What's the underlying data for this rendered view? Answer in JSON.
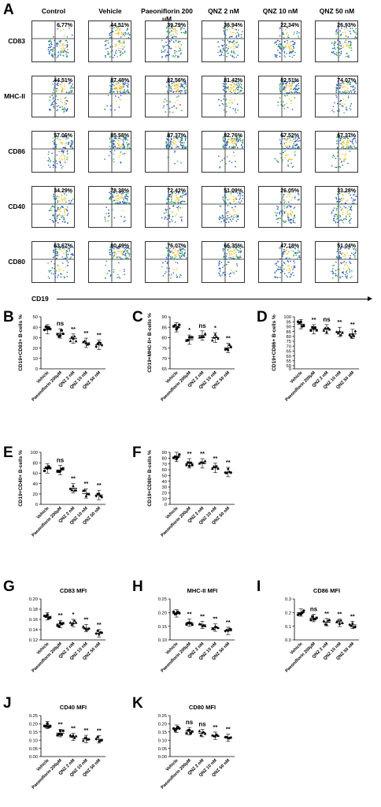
{
  "panel_labels": [
    "A",
    "B",
    "C",
    "D",
    "E",
    "F",
    "G",
    "H",
    "I",
    "J",
    "K"
  ],
  "panel_a": {
    "columns": [
      "Control",
      "Vehicle",
      "Paeoniflorin 200 μM",
      "QNZ 2 nM",
      "QNZ 10 nM",
      "QNZ 50 nM"
    ],
    "rows": [
      {
        "marker": "CD83",
        "values": [
          "6.77%",
          "44.51%",
          "39.79%",
          "36.94%",
          "22.34%",
          "26.93%"
        ]
      },
      {
        "marker": "MHC-II",
        "values": [
          "44.51%",
          "87.48%",
          "82.56%",
          "81.42%",
          "82.51%",
          "74.07%"
        ]
      },
      {
        "marker": "CD86",
        "values": [
          "57.06%",
          "85.58%",
          "87.37%",
          "82.76%",
          "67.52%",
          "67.37%"
        ]
      },
      {
        "marker": "CD40",
        "values": [
          "34.29%",
          "78.38%",
          "72.42%",
          "51.09%",
          "26.05%",
          "33.28%"
        ]
      },
      {
        "marker": "CD80",
        "values": [
          "63.67%",
          "80.49%",
          "76.07%",
          "66.35%",
          "47.18%",
          "51.04%"
        ]
      }
    ],
    "x_axis_label": "CD19"
  },
  "chart_data": [
    {
      "panel": "B",
      "type": "scatter",
      "ylabel": "CD19+CD83+ B-cells %",
      "ylim": [
        0,
        50
      ],
      "yticks": [
        "0",
        "10",
        "20",
        "30",
        "40",
        "50"
      ],
      "categories": [
        "Vehicle",
        "Paeoniflorin 200μM",
        "QNZ 2 nM",
        "QNZ 10 nM",
        "QNZ 50 nM"
      ],
      "means": [
        38,
        34,
        29,
        25,
        23
      ],
      "sig": [
        "",
        "ns",
        "**",
        "**",
        "**"
      ]
    },
    {
      "panel": "C",
      "type": "scatter",
      "ylabel": "CD19+MHC-II+ B-cells %",
      "ylim": [
        65,
        90
      ],
      "yticks": [
        "65",
        "70",
        "75",
        "80",
        "85",
        "90"
      ],
      "categories": [
        "Vehicle",
        "Paeoniflorin 200μM",
        "QNZ 2 nM",
        "QNZ 10 nM",
        "QNZ 50 nM"
      ],
      "means": [
        85,
        79,
        81,
        80,
        75
      ],
      "sig": [
        "",
        "*",
        "ns",
        "*",
        "**"
      ]
    },
    {
      "panel": "D",
      "type": "scatter",
      "ylabel": "CD19+CD86+ B-cells %",
      "ylim": [
        0,
        100
      ],
      "yticks": [
        "0",
        "50",
        "55",
        "60",
        "65",
        "70",
        "75",
        "80",
        "85",
        "90",
        "95",
        "100"
      ],
      "categories": [
        "Vehicle",
        "Paeoniflorin 200μM",
        "QNZ 2 nM",
        "QNZ 10 nM",
        "QNZ 50 nM"
      ],
      "means": [
        86,
        76,
        76,
        71,
        67
      ],
      "sig": [
        "",
        "**",
        "ns",
        "**",
        "**"
      ]
    },
    {
      "panel": "E",
      "type": "scatter",
      "ylabel": "CD19+CD40+ B-cells %",
      "ylim": [
        0,
        100
      ],
      "yticks": [
        "0",
        "20",
        "40",
        "60",
        "80",
        "100"
      ],
      "categories": [
        "Vehicle",
        "Paeoniflorin 200μM",
        "QNZ 2 nM",
        "QNZ 10 nM",
        "QNZ 50 nM"
      ],
      "means": [
        69,
        66,
        31,
        21,
        18
      ],
      "sig": [
        "",
        "ns",
        "**",
        "**",
        "**"
      ]
    },
    {
      "panel": "F",
      "type": "scatter",
      "ylabel": "CD19+CD80+ B-cells %",
      "ylim": [
        0,
        90
      ],
      "yticks": [
        "0",
        "10",
        "20",
        "30",
        "40",
        "50",
        "60",
        "70",
        "80",
        "90"
      ],
      "categories": [
        "Vehicle",
        "Paeoniflorin 200μM",
        "QNZ 2 nM",
        "QNZ 10 nM",
        "QNZ 50 nM"
      ],
      "means": [
        82,
        71,
        71,
        63,
        56
      ],
      "sig": [
        "",
        "**",
        "**",
        "**",
        "**"
      ]
    },
    {
      "panel": "G",
      "type": "scatter",
      "title": "CD83 MFI",
      "ylim": [
        0.12,
        0.2
      ],
      "yticks": [
        "0.12",
        "0.14",
        "0.16",
        "0.18",
        "0.20"
      ],
      "categories": [
        "Vehicle",
        "Paeoniflorin 200μM",
        "QNZ 2 nM",
        "QNZ 10 nM",
        "QNZ 50 nM"
      ],
      "means": [
        0.166,
        0.151,
        0.153,
        0.143,
        0.133
      ],
      "sig": [
        "",
        "**",
        "*",
        "**",
        "**"
      ]
    },
    {
      "panel": "H",
      "type": "scatter",
      "title": "MHC-II MFI",
      "ylim": [
        0.1,
        0.25
      ],
      "yticks": [
        "0.10",
        "0.15",
        "0.20",
        "0.25"
      ],
      "categories": [
        "Vehicle",
        "Paeoniflorin 200μM",
        "QNZ 2 nM",
        "QNZ 10 nM",
        "QNZ 50 nM"
      ],
      "means": [
        0.197,
        0.163,
        0.155,
        0.145,
        0.133
      ],
      "sig": [
        "",
        "**",
        "**",
        "**",
        "**"
      ]
    },
    {
      "panel": "I",
      "type": "scatter",
      "title": "CD86 MFI",
      "ylim": [
        0,
        0.3
      ],
      "yticks": [
        "0.0",
        "0.1",
        "0.2",
        "0.3"
      ],
      "categories": [
        "Vehicle",
        "Paeoniflorin 200μM",
        "QNZ 2 nM",
        "QNZ 10 nM",
        "QNZ 50 nM"
      ],
      "means": [
        0.2,
        0.16,
        0.13,
        0.125,
        0.11
      ],
      "sig": [
        "",
        "ns",
        "**",
        "**",
        "**"
      ]
    },
    {
      "panel": "J",
      "type": "scatter",
      "title": "CD40 MFI",
      "ylim": [
        0,
        0.25
      ],
      "yticks": [
        "0.00",
        "0.05",
        "0.10",
        "0.15",
        "0.20",
        "0.25"
      ],
      "categories": [
        "Vehicle",
        "Paeoniflorin 200μM",
        "QNZ 2 nM",
        "QNZ 10 nM",
        "QNZ 50 nM"
      ],
      "means": [
        0.192,
        0.143,
        0.12,
        0.107,
        0.105
      ],
      "sig": [
        "",
        "**",
        "**",
        "**",
        "**"
      ]
    },
    {
      "panel": "K",
      "type": "scatter",
      "title": "CD80 MFI",
      "ylim": [
        0,
        0.25
      ],
      "yticks": [
        "0.00",
        "0.05",
        "0.10",
        "0.15",
        "0.20",
        "0.25"
      ],
      "categories": [
        "Vehicle",
        "Paeoniflorin 200μM",
        "QNZ 2 nM",
        "QNZ 10 nM",
        "QNZ 50 nM"
      ],
      "means": [
        0.17,
        0.155,
        0.143,
        0.127,
        0.115
      ],
      "sig": [
        "",
        "ns",
        "ns",
        "**",
        "**"
      ]
    }
  ]
}
